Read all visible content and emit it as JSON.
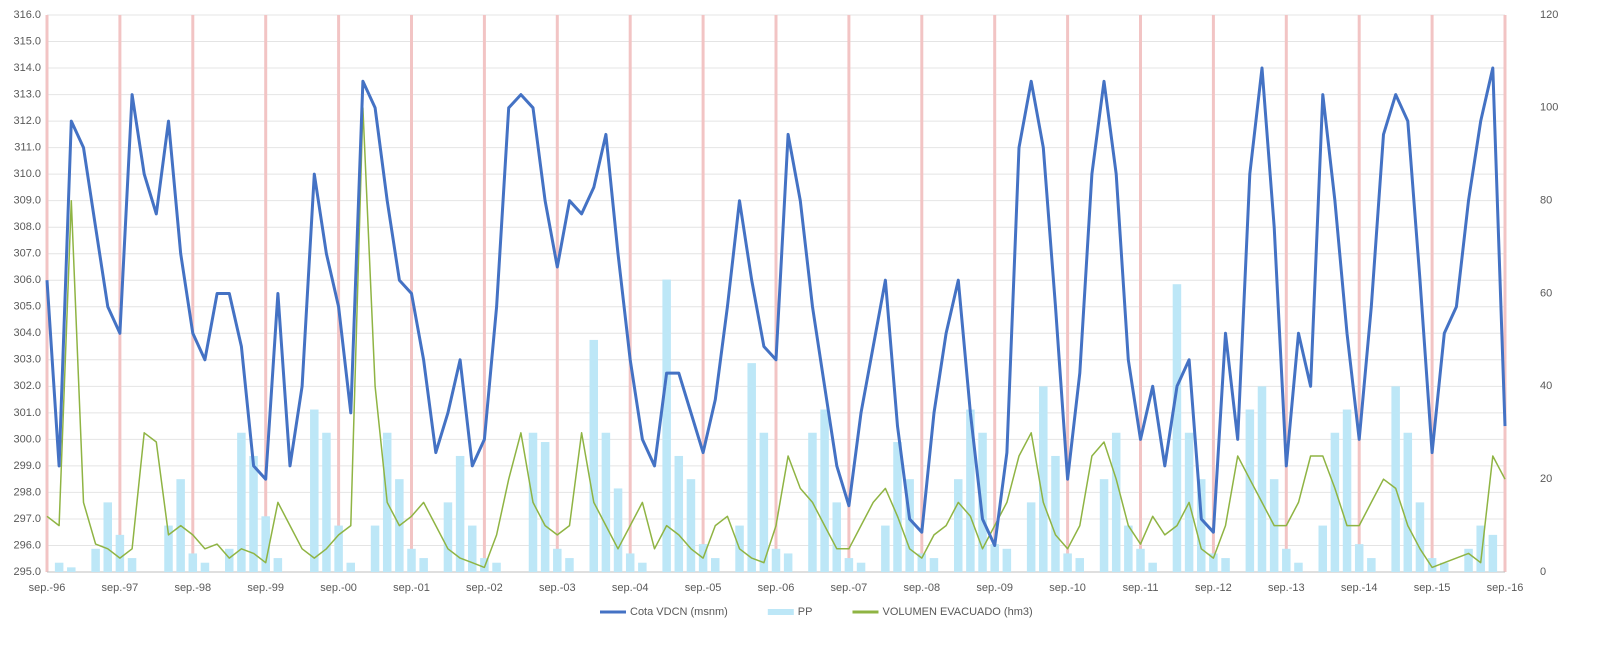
{
  "chart_data": {
    "type": "line",
    "categories": [
      "sep.-96",
      null,
      null,
      null,
      null,
      null,
      "sep.-97",
      null,
      null,
      null,
      null,
      null,
      "sep.-98",
      null,
      null,
      null,
      null,
      null,
      "sep.-99",
      null,
      null,
      null,
      null,
      null,
      "sep.-00",
      null,
      null,
      null,
      null,
      null,
      "sep.-01",
      null,
      null,
      null,
      null,
      null,
      "sep.-02",
      null,
      null,
      null,
      null,
      null,
      "sep.-03",
      null,
      null,
      null,
      null,
      null,
      "sep.-04",
      null,
      null,
      null,
      null,
      null,
      "sep.-05",
      null,
      null,
      null,
      null,
      null,
      "sep.-06",
      null,
      null,
      null,
      null,
      null,
      "sep.-07",
      null,
      null,
      null,
      null,
      null,
      "sep.-08",
      null,
      null,
      null,
      null,
      null,
      "sep.-09",
      null,
      null,
      null,
      null,
      null,
      "sep.-10",
      null,
      null,
      null,
      null,
      null,
      "sep.-11",
      null,
      null,
      null,
      null,
      null,
      "sep.-12",
      null,
      null,
      null,
      null,
      null,
      "sep.-13",
      null,
      null,
      null,
      null,
      null,
      "sep.-14",
      null,
      null,
      null,
      null,
      null,
      "sep.-15",
      null,
      null,
      null,
      null,
      null,
      "sep.-16"
    ],
    "series": [
      {
        "name": "Cota VDCN (msnm)",
        "type": "line",
        "color": "#4472c4",
        "values": [
          306,
          299,
          312,
          311,
          308,
          305,
          304,
          313,
          310,
          308.5,
          312,
          307,
          304,
          303,
          305.5,
          305.5,
          303.5,
          299,
          298.5,
          305.5,
          299,
          302,
          310,
          307,
          305,
          301,
          313.5,
          312.5,
          309,
          306,
          305.5,
          303,
          299.5,
          301,
          303,
          299,
          300,
          305,
          312.5,
          313,
          312.5,
          309,
          306.5,
          309,
          308.5,
          309.5,
          311.5,
          307,
          303,
          300,
          299,
          302.5,
          302.5,
          301,
          299.5,
          301.5,
          305,
          309,
          306,
          303.5,
          303,
          311.5,
          309,
          305,
          302,
          299,
          297.5,
          301,
          303.5,
          306,
          300.5,
          297,
          296.5,
          301,
          304,
          306,
          301,
          297,
          296,
          299.5,
          311,
          313.5,
          311,
          305,
          298.5,
          302.5,
          310,
          313.5,
          310,
          303,
          300,
          302,
          299,
          302,
          303,
          297,
          296.5,
          304,
          300,
          310,
          314,
          308,
          299,
          304,
          302,
          313,
          309,
          304,
          300,
          305,
          311.5,
          313,
          312,
          306,
          299.5,
          304,
          305,
          309,
          312,
          314,
          300.5
        ]
      },
      {
        "name": "PP",
        "type": "bar",
        "axis": "y2",
        "color": "#bde7f7",
        "values": [
          0,
          2,
          1,
          0,
          5,
          15,
          8,
          3,
          0,
          0,
          10,
          20,
          4,
          2,
          0,
          5,
          30,
          25,
          12,
          3,
          0,
          0,
          35,
          30,
          10,
          2,
          0,
          10,
          30,
          20,
          5,
          3,
          0,
          15,
          25,
          10,
          3,
          2,
          0,
          0,
          30,
          28,
          5,
          3,
          0,
          50,
          30,
          18,
          4,
          2,
          0,
          63,
          25,
          20,
          6,
          3,
          0,
          10,
          45,
          30,
          5,
          4,
          0,
          30,
          35,
          15,
          3,
          2,
          0,
          10,
          28,
          20,
          4,
          3,
          0,
          20,
          35,
          30,
          6,
          5,
          0,
          15,
          40,
          25,
          4,
          3,
          0,
          20,
          30,
          10,
          5,
          2,
          0,
          62,
          30,
          20,
          4,
          3,
          0,
          35,
          40,
          20,
          5,
          2,
          0,
          10,
          30,
          35,
          6,
          3,
          0,
          40,
          30,
          15,
          3,
          2,
          0,
          5,
          10,
          8,
          0
        ]
      },
      {
        "name": "VOLUMEN EVACUADO (hm3)",
        "type": "line",
        "axis": "y2",
        "color": "#8fb443",
        "values": [
          12,
          10,
          80,
          15,
          6,
          5,
          3,
          5,
          30,
          28,
          8,
          10,
          8,
          5,
          6,
          3,
          5,
          4,
          2,
          15,
          10,
          5,
          3,
          5,
          8,
          10,
          100,
          40,
          15,
          10,
          12,
          15,
          10,
          5,
          3,
          2,
          1,
          8,
          20,
          30,
          15,
          10,
          8,
          10,
          30,
          15,
          10,
          5,
          10,
          15,
          5,
          10,
          8,
          5,
          3,
          10,
          12,
          5,
          3,
          2,
          10,
          25,
          18,
          15,
          10,
          5,
          5,
          10,
          15,
          18,
          12,
          5,
          3,
          8,
          10,
          15,
          12,
          5,
          10,
          15,
          25,
          30,
          15,
          8,
          5,
          10,
          25,
          28,
          20,
          10,
          6,
          12,
          8,
          10,
          15,
          5,
          3,
          10,
          25,
          20,
          15,
          10,
          10,
          15,
          25,
          25,
          18,
          10,
          10,
          15,
          20,
          18,
          10,
          5,
          1,
          2,
          3,
          4,
          2,
          25,
          20
        ]
      }
    ],
    "ylim": [
      295,
      316
    ],
    "yticks": [
      {
        "value": 295,
        "label": "295.0"
      },
      {
        "value": 296,
        "label": "296.0"
      },
      {
        "value": 297,
        "label": "297.0"
      },
      {
        "value": 298,
        "label": "298.0"
      },
      {
        "value": 299,
        "label": "299.0"
      },
      {
        "value": 300,
        "label": "300.0"
      },
      {
        "value": 301,
        "label": "301.0"
      },
      {
        "value": 302,
        "label": "302.0"
      },
      {
        "value": 303,
        "label": "303.0"
      },
      {
        "value": 304,
        "label": "304.0"
      },
      {
        "value": 305,
        "label": "305.0"
      },
      {
        "value": 306,
        "label": "306.0"
      },
      {
        "value": 307,
        "label": "307.0"
      },
      {
        "value": 308,
        "label": "308.0"
      },
      {
        "value": 309,
        "label": "309.0"
      },
      {
        "value": 310,
        "label": "310.0"
      },
      {
        "value": 311,
        "label": "311.0"
      },
      {
        "value": 312,
        "label": "312.0"
      },
      {
        "value": 313,
        "label": "313.0"
      },
      {
        "value": 314,
        "label": "314.0"
      },
      {
        "value": 315,
        "label": "315.0"
      },
      {
        "value": 316,
        "label": "316.0"
      }
    ],
    "y2lim": [
      0,
      120
    ],
    "y2ticks": [
      0,
      20,
      40,
      60,
      80,
      100,
      120
    ],
    "grid": true,
    "legend": "bottom"
  }
}
